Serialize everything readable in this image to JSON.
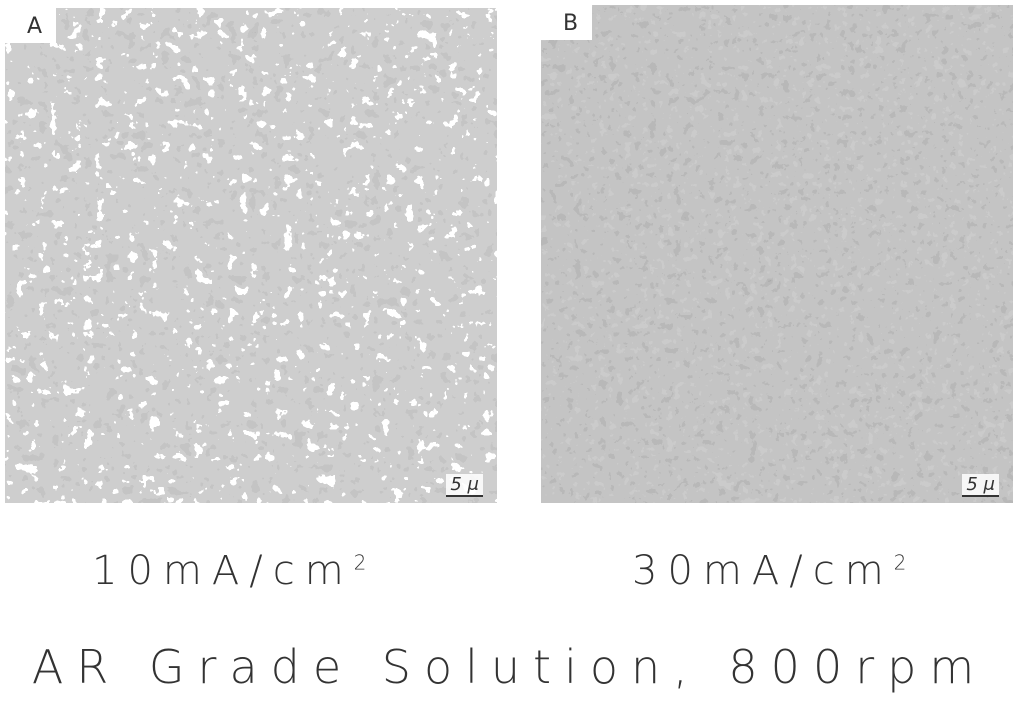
{
  "panels": [
    {
      "label": "A",
      "scale_bar": "5 μ",
      "caption": {
        "text": "10mA/cm",
        "superscript": "2"
      }
    },
    {
      "label": "B",
      "scale_bar": "5 μ",
      "caption": {
        "text": "30mA/cm",
        "superscript": "2"
      }
    }
  ],
  "title": "AR Grade Solution, 800rpm"
}
